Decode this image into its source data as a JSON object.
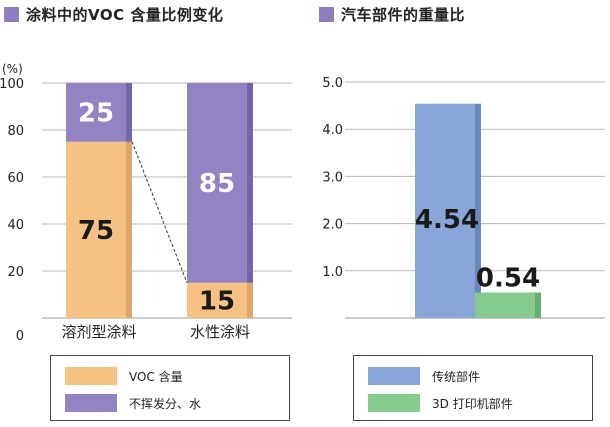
{
  "colors": {
    "voc": "#F5C283",
    "voc_dark": "#DBA869",
    "nonvolatile": "#9383C3",
    "nonvolatile_dark": "#7565A5",
    "conventional": "#88A6D8",
    "conventional_dark": "#6A88BA",
    "printed": "#86CB8E",
    "printed_dark": "#68AD70",
    "title_swatch": "#8E7EBE"
  },
  "left": {
    "title": "涂料中的VOC 含量比例变化",
    "unit": "(%)",
    "legend": [
      "VOC 含量",
      "不挥发分、水"
    ]
  },
  "right": {
    "title": "汽车部件的重量比",
    "legend": [
      "传统部件",
      "3D 打印机部件"
    ]
  },
  "chart_data": [
    {
      "type": "bar",
      "stacked": true,
      "title": "涂料中的VOC 含量比例变化",
      "ylabel": "(%)",
      "categories": [
        "溶剂型涂料",
        "水性涂料"
      ],
      "series": [
        {
          "name": "VOC 含量",
          "values": [
            75,
            15
          ],
          "labels": [
            "75",
            "15"
          ]
        },
        {
          "name": "不挥发分、水",
          "values": [
            25,
            85
          ],
          "labels": [
            "25",
            "85"
          ]
        }
      ],
      "ylim": [
        0,
        100
      ],
      "yticks": [
        "0",
        "20",
        "40",
        "60",
        "80",
        "100"
      ],
      "grid": true,
      "legend": "bottom"
    },
    {
      "type": "bar",
      "title": "汽车部件的重量比",
      "categories": [
        "传统部件",
        "3D 打印机部件"
      ],
      "values": [
        4.54,
        0.54
      ],
      "labels": [
        "4.54",
        "0.54"
      ],
      "ylim": [
        0,
        5
      ],
      "yticks": [
        "1.0",
        "2.0",
        "3.0",
        "4.0",
        "5.0"
      ],
      "grid": true,
      "legend": "bottom"
    }
  ]
}
